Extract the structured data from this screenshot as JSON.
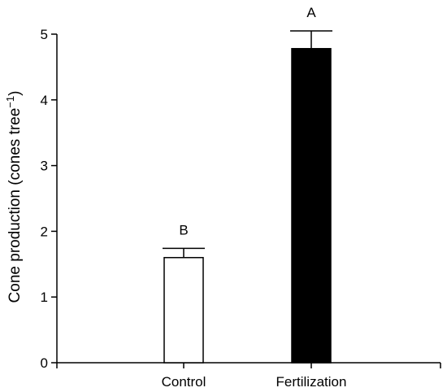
{
  "chart_data": {
    "type": "bar",
    "title": "",
    "xlabel": "",
    "ylabel": "Cone production (cones tree",
    "ylabel_superscript": "−1",
    "ylabel_close": ")",
    "ylim": [
      0,
      5
    ],
    "y_ticks": [
      "0",
      "1",
      "2",
      "3",
      "4",
      "5"
    ],
    "categories": [
      "Control",
      "Fertilization"
    ],
    "values": [
      1.6,
      4.78
    ],
    "error_upper": [
      1.74,
      5.05
    ],
    "significance_labels": [
      "B",
      "A"
    ],
    "bar_fill_colors": [
      "#ffffff",
      "#000000"
    ],
    "bar_stroke_color": "#000000",
    "grid": false,
    "legend": "none"
  }
}
